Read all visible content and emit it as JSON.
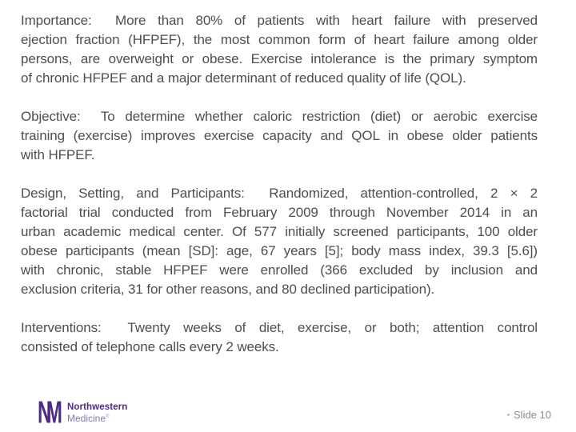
{
  "slide": {
    "background": "#ffffff",
    "text_color": "#4e4e50",
    "accent_purple": "#4e2a84",
    "accent_purple_light": "#8577b3",
    "footer_gray": "#8c8c8c"
  },
  "main": {
    "paragraphs": [
      {
        "name": "Importance",
        "lines": [
          "Importance:  More than 80% of patients with heart failure with preserved",
          "ejection fraction (HFPEF), the most common form of heart failure among older",
          "persons, are overweight or obese. Exercise intolerance is the primary symptom",
          "of chronic HFPEF and a major determinant of reduced quality of life (QOL)."
        ]
      },
      {
        "name": "Objective",
        "lines": [
          "Objective:  To determine whether caloric restriction (diet) or aerobic exercise",
          "training (exercise) improves exercise capacity and QOL in obese older patients",
          "with HFPEF."
        ]
      },
      {
        "name": "Design, Setting, and Participants",
        "lines": [
          "Design, Setting, and Participants:  Randomized, attention-controlled, 2 × 2",
          "factorial trial conducted from February 2009 through November 2014 in an",
          "urban academic medical center. Of 577 initially screened participants, 100 older",
          "obese participants (mean [SD]: age, 67 years [5]; body mass index, 39.3 [5.6])",
          "with chronic, stable HFPEF were enrolled (366 excluded by inclusion and",
          "exclusion criteria, 31 for other reasons, and 80 declined participation)."
        ]
      },
      {
        "name": "Interventions",
        "lines": [
          "Interventions:  Twenty weeks of diet, exercise, or both; attention control",
          "consisted of telephone calls every 2 weeks."
        ]
      }
    ]
  },
  "footer": {
    "logo": {
      "monogram_n": "N",
      "monogram_m": "M",
      "name": "Northwestern",
      "division": "Medicine",
      "trademark": "®"
    },
    "bullet": "▪",
    "slide_label": "Slide 10"
  }
}
